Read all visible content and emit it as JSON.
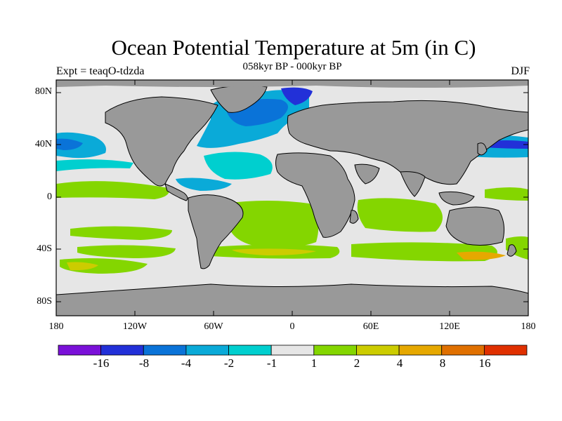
{
  "title": "Ocean Potential Temperature at 5m (in C)",
  "subtitle": "058kyr BP - 000kyr BP",
  "left_label": "Expt = teaqO-tdzda",
  "right_label": "DJF",
  "lat_labels": [
    "80N",
    "40N",
    "0",
    "40S",
    "80S"
  ],
  "lon_labels": [
    "180",
    "120W",
    "60W",
    "0",
    "60E",
    "120E",
    "180"
  ],
  "colorbar": {
    "colors": [
      "#7a10d8",
      "#2230d8",
      "#0a73d8",
      "#0aaad8",
      "#00cfcf",
      "#e6e6e6",
      "#84d600",
      "#cccc00",
      "#e6a800",
      "#e07000",
      "#e03000"
    ],
    "labels": [
      "-16",
      "-8",
      "-4",
      "-2",
      "-1",
      "1",
      "2",
      "4",
      "8",
      "16"
    ]
  },
  "colors": {
    "land": "#999999",
    "neutral": "#e6e6e6",
    "ocean_light_blue": "#0aaad8",
    "ocean_cyan": "#00cfcf",
    "ocean_blue": "#0a73d8",
    "ocean_deep_blue": "#2230d8",
    "green": "#84d600",
    "yellow": "#cccc00",
    "orange": "#e6a800"
  }
}
